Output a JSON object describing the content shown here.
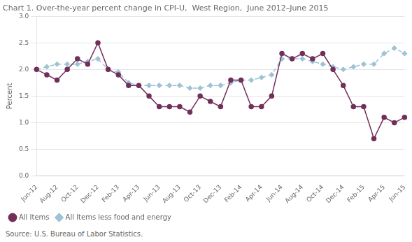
{
  "chart_data": {
    "type": "line",
    "title": "Chart 1. Over-the-year percent change in CPI-U,  West Region,  June 2012–June 2015",
    "ylabel": "Percent",
    "annotations": [
      "Source: U.S. Bureau of Labor Statistics."
    ],
    "categories": [
      "Jun-12",
      null,
      "Aug-12",
      null,
      "Oct-12",
      null,
      "Dec-12",
      null,
      "Feb-13",
      null,
      "Apr-13",
      null,
      "Jun-13",
      null,
      "Aug-13",
      null,
      "Oct-13",
      null,
      "Dec-13",
      null,
      "Feb-14",
      null,
      "Apr-14",
      null,
      "Jun-14",
      null,
      "Aug-14",
      null,
      "Oct-14",
      null,
      "Dec-14",
      null,
      "Feb-15",
      null,
      "Apr-15",
      null,
      "Jun-15"
    ],
    "series": [
      {
        "name": "All Items",
        "color": "#722F5A",
        "marker": "circle",
        "line_style": "solid",
        "values": [
          2.0,
          1.9,
          1.8,
          2.0,
          2.2,
          2.1,
          2.5,
          2.0,
          1.9,
          1.7,
          1.7,
          1.5,
          1.3,
          1.3,
          1.3,
          1.2,
          1.5,
          1.4,
          1.3,
          1.8,
          1.8,
          1.3,
          1.3,
          1.5,
          2.3,
          2.2,
          2.3,
          2.2,
          2.3,
          2.0,
          1.7,
          1.3,
          1.3,
          0.7,
          1.1,
          1.0,
          1.1
        ]
      },
      {
        "name": "All Items less food and energy",
        "color": "#9DC3D4",
        "marker": "diamond",
        "line_style": "dashed",
        "values": [
          2.0,
          2.05,
          2.1,
          2.1,
          2.1,
          2.15,
          2.2,
          2.0,
          1.95,
          1.75,
          1.7,
          1.7,
          1.7,
          1.7,
          1.7,
          1.65,
          1.65,
          1.7,
          1.7,
          1.75,
          1.8,
          1.8,
          1.85,
          1.9,
          2.2,
          2.2,
          2.2,
          2.15,
          2.1,
          2.05,
          2.0,
          2.05,
          2.1,
          2.1,
          2.3,
          2.4,
          2.3
        ]
      }
    ],
    "ylim": [
      0.0,
      3.0
    ],
    "yticks": [
      {
        "value": 0,
        "label": "0.0"
      },
      0.5,
      {
        "value": 1,
        "label": "1.0"
      },
      1.5,
      {
        "value": 2,
        "label": "2.0"
      },
      2.5,
      {
        "value": 3,
        "label": "3.0"
      }
    ],
    "grid": true,
    "legend": "lower left"
  }
}
